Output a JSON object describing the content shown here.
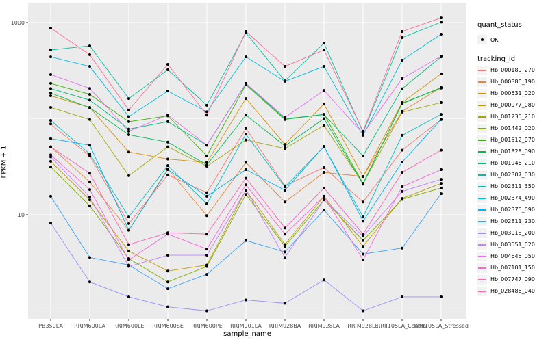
{
  "chart_data": {
    "type": "line",
    "xlabel": "sample_name",
    "ylabel": "FPKM + 1",
    "y_scale": "log10",
    "y_ticks": [
      {
        "label": "1000",
        "value": 1000
      },
      {
        "label": "10",
        "value": 10
      }
    ],
    "y_minor_gridlines": [
      100,
      1
    ],
    "legend_position": "right",
    "grid": true,
    "marker": {
      "shape": "point",
      "color": "#000000"
    },
    "categories": [
      "PB350LA",
      "RRIM600LA",
      "RRIM600LE",
      "RRIM600SE",
      "RRIM600PE",
      "RRIM901LA",
      "RRIM928BA",
      "RRIM928LA",
      "RRIM928LE",
      "RRII105LA_Control",
      "RRII105LA_Stressed"
    ],
    "series": [
      {
        "name": "Hb_000189_270",
        "color": "#F8766D",
        "values": [
          88,
          41,
          8.1,
          26,
          17,
          79,
          20,
          31,
          13.6,
          47,
          98
        ]
      },
      {
        "name": "Hb_000380_190",
        "color": "#EA8331",
        "values": [
          51,
          22,
          6.9,
          30,
          9.8,
          35,
          13.6,
          27.6,
          25,
          119,
          211
        ]
      },
      {
        "name": "Hb_000531_020",
        "color": "#D89000",
        "values": [
          173,
          131,
          45,
          38,
          35,
          162,
          54,
          142,
          25,
          147,
          293
        ]
      },
      {
        "name": "Hb_000977_080",
        "color": "#C09B00",
        "values": [
          36,
          14.3,
          4.2,
          2.6,
          3.0,
          18,
          4.9,
          15.6,
          4.7,
          14.8,
          21.2
        ]
      },
      {
        "name": "Hb_001235_210",
        "color": "#A3A500",
        "values": [
          131,
          98,
          25.5,
          51,
          32,
          60,
          49,
          85,
          21.2,
          117,
          147
        ]
      },
      {
        "name": "Hb_001442_020",
        "color": "#7CAE00",
        "values": [
          31.5,
          12.4,
          3.5,
          2.0,
          2.9,
          16.3,
          4.7,
          14.3,
          5.4,
          14.5,
          19
        ]
      },
      {
        "name": "Hb_001512_070",
        "color": "#39B600",
        "values": [
          233,
          179,
          93,
          107,
          41,
          225,
          98,
          111,
          21.2,
          143,
          211
        ]
      },
      {
        "name": "Hb_001828_090",
        "color": "#00BB4E",
        "values": [
          185,
          130,
          68,
          57,
          33,
          109,
          52,
          100,
          20.8,
          145,
          208
        ]
      },
      {
        "name": "Hb_001946_210",
        "color": "#00BF7D",
        "values": [
          206,
          156,
          78,
          93,
          53,
          230,
          100,
          110,
          41,
          205,
          440
        ]
      },
      {
        "name": "Hb_002307_030",
        "color": "#00C1A3",
        "values": [
          519,
          573,
          162,
          323,
          138,
          780,
          248,
          611,
          72,
          697,
          1010
        ]
      },
      {
        "name": "Hb_002311_350",
        "color": "#00BFC4",
        "values": [
          96,
          43,
          9.5,
          32.5,
          13,
          69,
          19.5,
          51,
          9.5,
          67,
          111
        ]
      },
      {
        "name": "Hb_002374_490",
        "color": "#00BAE0",
        "values": [
          440,
          350,
          105,
          194,
          118,
          440,
          245,
          350,
          67,
          406,
          757
        ]
      },
      {
        "name": "Hb_002375_090",
        "color": "#00B0F6",
        "values": [
          62,
          53,
          6.9,
          29.5,
          15.6,
          29.5,
          18,
          51.5,
          8.6,
          35.3,
          98
        ]
      },
      {
        "name": "Hb_002811_230",
        "color": "#35A2FF",
        "values": [
          15.6,
          3.6,
          3.0,
          1.7,
          2.4,
          5.4,
          4.1,
          11.2,
          3.9,
          4.5,
          16.6
        ]
      },
      {
        "name": "Hb_003018_200",
        "color": "#9590FF",
        "values": [
          8.2,
          2.0,
          1.4,
          1.1,
          1.0,
          1.3,
          1.2,
          2.1,
          1.0,
          1.4,
          1.4
        ]
      },
      {
        "name": "Hb_003551_020",
        "color": "#C77CFF",
        "values": [
          40,
          15.3,
          2.9,
          3.8,
          3.8,
          18,
          3.6,
          14.3,
          6.0,
          17.5,
          23.4
        ]
      },
      {
        "name": "Hb_004645_050",
        "color": "#E76BF3",
        "values": [
          288,
          207,
          74,
          109,
          53,
          233,
          103,
          197,
          70,
          261,
          448
        ]
      },
      {
        "name": "Hb_007101_150",
        "color": "#FA62DB",
        "values": [
          42,
          18.3,
          3.4,
          6.3,
          4.4,
          20.5,
          6.3,
          15.6,
          3.4,
          19.6,
          29.5
        ]
      },
      {
        "name": "Hb_007747_090",
        "color": "#FF62BC",
        "values": [
          51,
          27,
          4.9,
          6.5,
          6.3,
          24,
          7.3,
          19,
          6.3,
          27.6,
          47
        ]
      },
      {
        "name": "Hb_028486_040",
        "color": "#FF6A98",
        "values": [
          877,
          463,
          123,
          368,
          109,
          808,
          350,
          519,
          74,
          808,
          1120
        ]
      }
    ]
  },
  "legend": {
    "quant_status_title": "quant_status",
    "quant_status_items": [
      {
        "label": "OK",
        "marker": "point"
      }
    ],
    "tracking_id_title": "tracking_id"
  },
  "colors": {
    "panel_bg": "#EBEBEB",
    "grid": "#FFFFFF",
    "axis_text": "#4D4D4D",
    "tick_mark": "#333333",
    "legend_key_bg": "#F2F2F2",
    "point": "#000000"
  }
}
